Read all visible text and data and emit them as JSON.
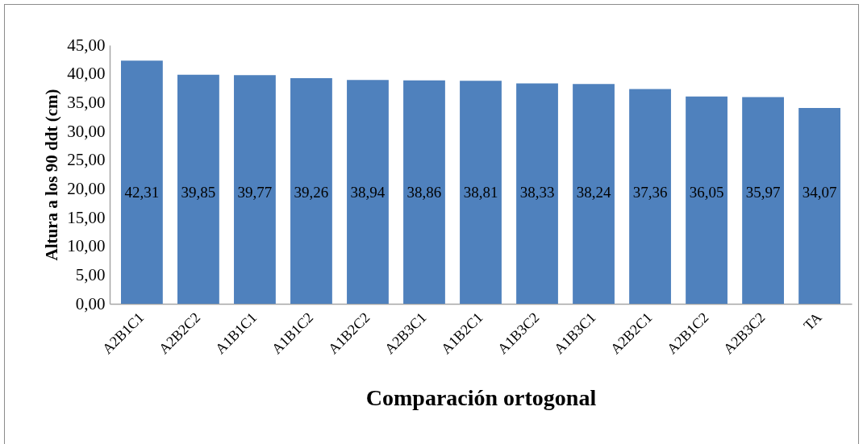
{
  "chart_data": {
    "type": "bar",
    "xlabel": "Comparación ortogonal",
    "ylabel": "Altura a los 90 ddt (cm)",
    "categories": [
      "A2B1C1",
      "A2B2C2",
      "A1B1C1",
      "A1B1C2",
      "A1B2C2",
      "A2B3C1",
      "A1B2C1",
      "A1B3C2",
      "A1B3C1",
      "A2B2C1",
      "A2B1C2",
      "A2B3C2",
      "TA"
    ],
    "values": [
      42.31,
      39.85,
      39.77,
      39.26,
      38.94,
      38.86,
      38.81,
      38.33,
      38.24,
      37.36,
      36.05,
      35.97,
      34.07
    ],
    "value_labels": [
      "42,31",
      "39,85",
      "39,77",
      "39,26",
      "38,94",
      "38,86",
      "38,81",
      "38,33",
      "38,24",
      "37,36",
      "36,05",
      "35,97",
      "34,07"
    ],
    "color": "#4f81bd",
    "ylim": [
      0,
      45
    ],
    "yticks": [
      {
        "value": 0,
        "label": "0,00"
      },
      {
        "value": 5,
        "label": "5,00"
      },
      {
        "value": 10,
        "label": "10,00"
      },
      {
        "value": 15,
        "label": "15,00"
      },
      {
        "value": 20,
        "label": "20,00"
      },
      {
        "value": 25,
        "label": "25,00"
      },
      {
        "value": 30,
        "label": "30,00"
      },
      {
        "value": 35,
        "label": "35,00"
      },
      {
        "value": 40,
        "label": "40,00"
      },
      {
        "value": 45,
        "label": "45,00"
      }
    ]
  }
}
